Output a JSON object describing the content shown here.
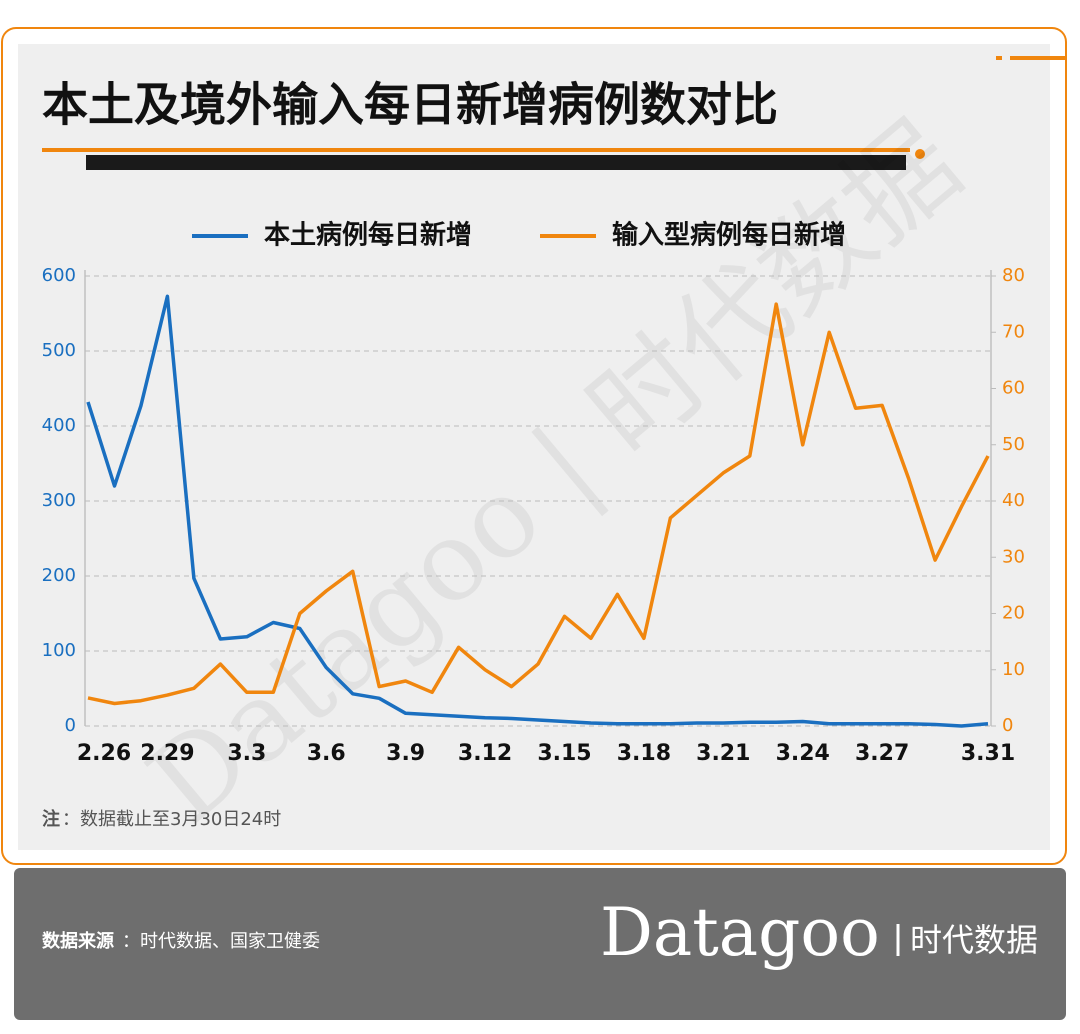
{
  "chart_data": {
    "type": "line",
    "title": "本土及境外输入每日新增病例数对比",
    "categories": [
      "2.26",
      null,
      null,
      "2.29",
      null,
      null,
      "3.3",
      null,
      null,
      "3.6",
      null,
      null,
      "3.9",
      null,
      null,
      "3.12",
      null,
      null,
      "3.15",
      null,
      null,
      "3.18",
      null,
      null,
      "3.21",
      null,
      null,
      "3.24",
      null,
      null,
      "3.27",
      null,
      null,
      null,
      "3.31"
    ],
    "series": [
      {
        "name": "本土病例每日新增",
        "color": "#1a6fc0",
        "axis": "y",
        "values": [
          432,
          320,
          427,
          573,
          197,
          116,
          119,
          138,
          130,
          78,
          43,
          37,
          17,
          15,
          13,
          11,
          10,
          8,
          6,
          4,
          3,
          3,
          3,
          4,
          4,
          5,
          5,
          6,
          3,
          3,
          3,
          3,
          2,
          0,
          3
        ]
      },
      {
        "name": "输入型病例每日新增",
        "color": "#f0860e",
        "axis": "y2",
        "values": [
          5,
          4,
          4.5,
          5.5,
          6.7,
          11,
          6,
          6,
          20,
          24,
          27.5,
          7,
          8,
          6,
          14,
          10,
          7,
          11,
          19.5,
          15.6,
          23.4,
          15.6,
          37,
          41,
          45,
          48,
          75,
          50,
          70,
          56.5,
          57,
          44,
          29.5,
          39,
          48
        ]
      }
    ],
    "ylim": [
      0,
      600
    ],
    "yticks": [
      0,
      100,
      200,
      300,
      400,
      500,
      600
    ],
    "y2lim": [
      0,
      80
    ],
    "y2ticks": [
      0,
      10,
      20,
      30,
      40,
      50,
      60,
      70,
      80
    ],
    "grid": true,
    "note_label": "注",
    "note": "：数据截止至3月30日24时",
    "source_label": "数据来源",
    "source": "：时代数据、国家卫健委",
    "logo_en": "Datagoo",
    "logo_cn": "时代数据",
    "watermark": "Datagoo | 时代数据"
  }
}
